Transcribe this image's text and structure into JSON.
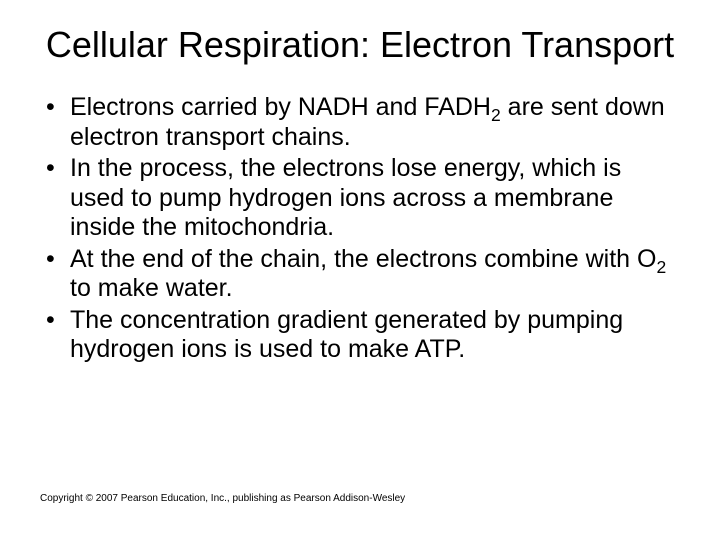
{
  "type": "slide",
  "background_color": "#ffffff",
  "text_color": "#000000",
  "font_family": "Arial",
  "title": {
    "text": "Cellular Respiration: Electron Transport",
    "fontsize": 36,
    "align": "center",
    "weight": "normal"
  },
  "bullets": {
    "fontsize": 25,
    "marker": "•",
    "items": [
      {
        "segments": [
          {
            "t": "Electrons carried by NADH and FADH"
          },
          {
            "t": "2",
            "sub": true
          },
          {
            "t": " are sent down electron transport chains."
          }
        ]
      },
      {
        "segments": [
          {
            "t": "In the process, the electrons lose energy, which is used to pump hydrogen ions across a membrane inside the mitochondria."
          }
        ]
      },
      {
        "segments": [
          {
            "t": "At the end of the chain, the electrons combine with O"
          },
          {
            "t": "2",
            "sub": true
          },
          {
            "t": " to make water."
          }
        ]
      },
      {
        "segments": [
          {
            "t": "The concentration gradient generated by pumping hydrogen ions is used to make ATP."
          }
        ]
      }
    ]
  },
  "copyright": {
    "text": "Copyright © 2007 Pearson Education, Inc., publishing as Pearson Addison-Wesley",
    "fontsize": 10
  }
}
